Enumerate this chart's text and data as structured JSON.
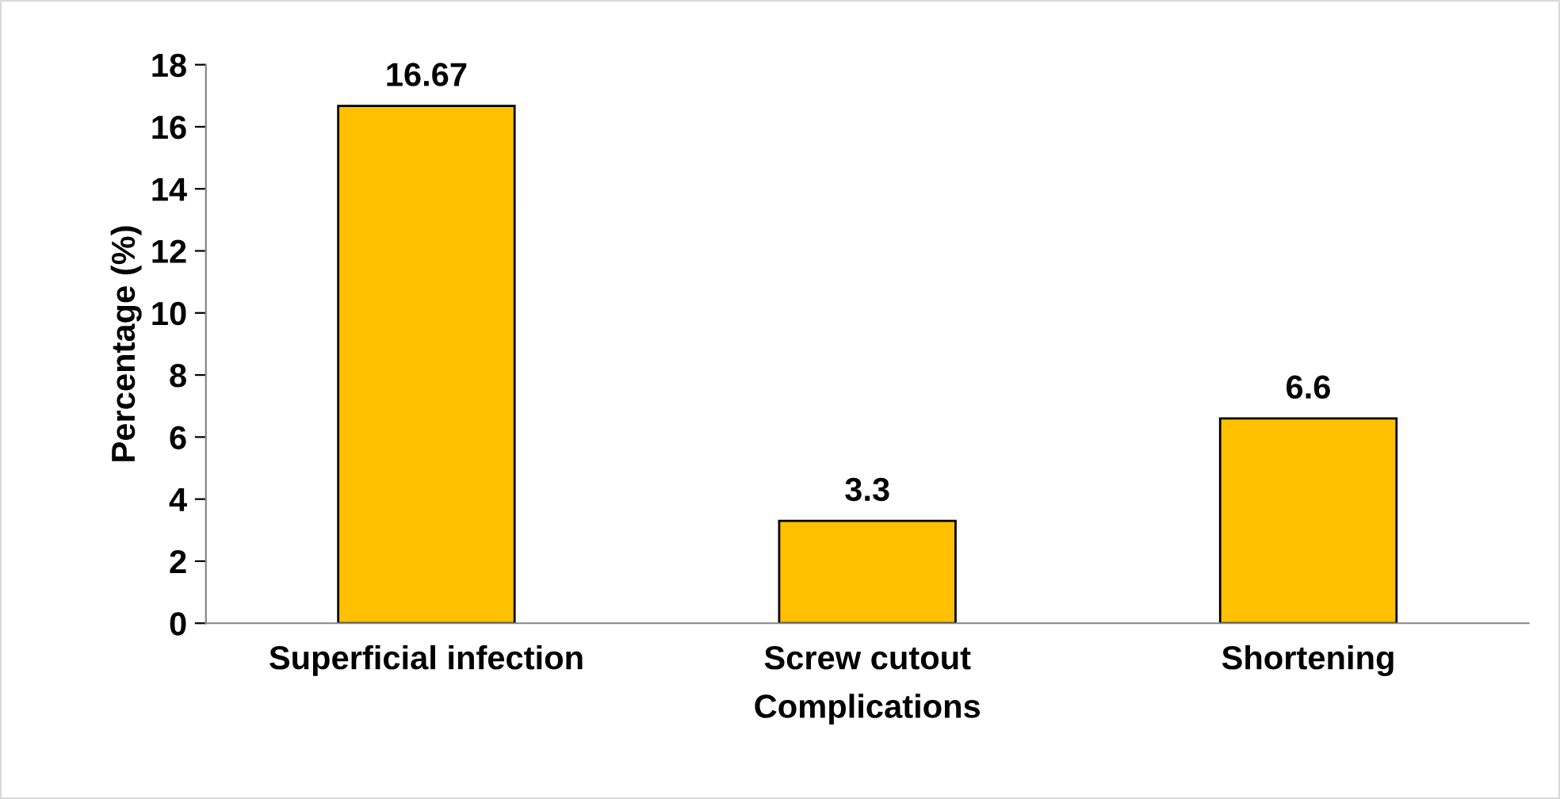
{
  "chart_data": {
    "type": "bar",
    "xlabel": "Complications",
    "ylabel": "Percentage (%)",
    "categories": [
      "Superficial infection",
      "Screw cutout",
      "Shortening"
    ],
    "values": [
      16.67,
      3.3,
      6.6
    ],
    "color": "#ffc000",
    "ylim": [
      0,
      18
    ],
    "yticks": [
      0,
      2,
      4,
      6,
      8,
      10,
      12,
      14,
      16,
      18
    ],
    "data_labels": true,
    "grid": false,
    "legend": false
  }
}
